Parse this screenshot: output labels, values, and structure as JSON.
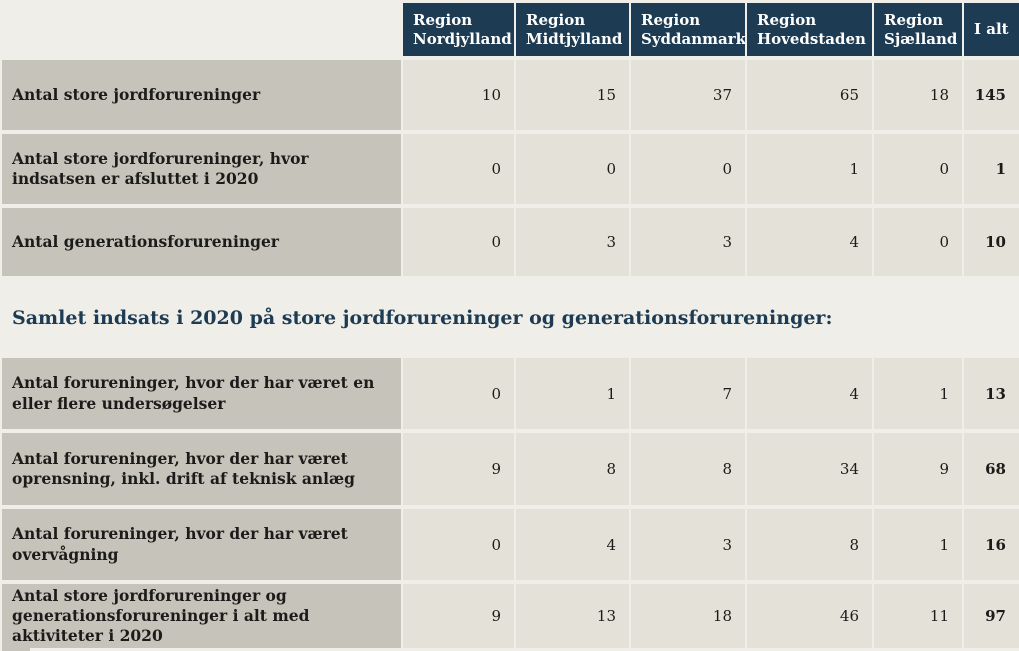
{
  "colors": {
    "page_background": "#efeee8",
    "header_background": "#1d3b52",
    "label_cell_background": "#c6c3ba",
    "data_cell_background": "#e4e2d8",
    "header_text": "#ffffff",
    "body_text": "#1b1b19",
    "heading_text": "#1d3b52"
  },
  "table": {
    "columns": [
      "Region Nordjylland",
      "Region Midtjylland",
      "Region Syddanmark",
      "Region Hovedstaden",
      "Region Sjælland",
      "I alt"
    ],
    "rows_top": [
      {
        "label": "Antal store jordforureninger",
        "values": [
          "10",
          "15",
          "37",
          "65",
          "18"
        ],
        "total": "145"
      },
      {
        "label": "Antal store jordforureninger, hvor indsatsen er afsluttet i 2020",
        "values": [
          "0",
          "0",
          "0",
          "1",
          "0"
        ],
        "total": "1"
      },
      {
        "label": "Antal generationsforureninger",
        "values": [
          "0",
          "3",
          "3",
          "4",
          "0"
        ],
        "total": "10"
      }
    ],
    "section_heading": "Samlet indsats i 2020 på store jordforureninger og generationsforureninger:",
    "rows_bottom": [
      {
        "label": "Antal forureninger, hvor der har været en eller flere undersøgelser",
        "values": [
          "0",
          "1",
          "7",
          "4",
          "1"
        ],
        "total": "13"
      },
      {
        "label": "Antal forureninger, hvor der har været oprensning, inkl. drift af teknisk anlæg",
        "values": [
          "9",
          "8",
          "8",
          "34",
          "9"
        ],
        "total": "68"
      },
      {
        "label": "Antal forureninger, hvor der har været overvågning",
        "values": [
          "0",
          "4",
          "3",
          "8",
          "1"
        ],
        "total": "16"
      },
      {
        "label": "Antal store jordforureninger og generations­forureninger i alt med aktiviteter i 2020",
        "values": [
          "9",
          "13",
          "18",
          "46",
          "11"
        ],
        "total": "97"
      }
    ]
  }
}
